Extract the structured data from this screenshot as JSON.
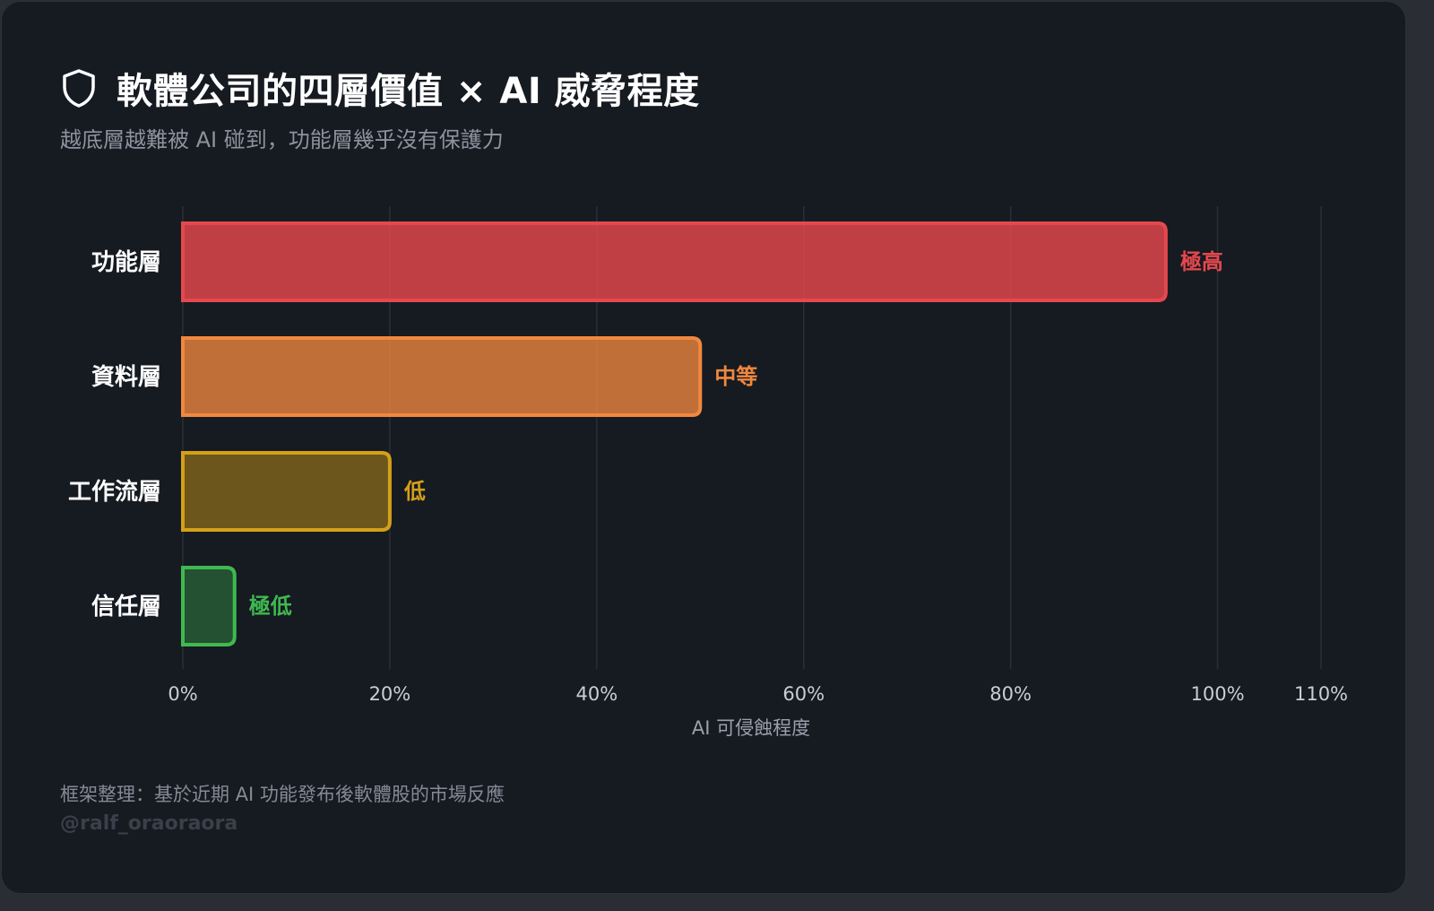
{
  "header": {
    "icon": "shield-icon",
    "title": "軟體公司的四層價值 × AI 威脅程度",
    "subtitle": "越底層越難被 AI 碰到，功能層幾乎沒有保護力"
  },
  "chart_data": {
    "type": "bar",
    "orientation": "horizontal",
    "categories": [
      "功能層",
      "資料層",
      "工作流層",
      "信任層"
    ],
    "values": [
      95,
      50,
      20,
      5
    ],
    "value_unit": "%",
    "data_labels": [
      "極高",
      "中等",
      "低",
      "極低"
    ],
    "colors": [
      "#e5484d",
      "#f0883e",
      "#d4a017",
      "#3fb950"
    ],
    "xlabel": "AI 可侵蝕程度",
    "xlim": [
      0,
      110
    ],
    "xticks": [
      0,
      20,
      40,
      60,
      80,
      100,
      110
    ],
    "xtick_labels": [
      "0%",
      "20%",
      "40%",
      "60%",
      "80%",
      "100%",
      "110%"
    ],
    "grid": "vertical",
    "legend": "none"
  },
  "footer": {
    "note": "框架整理：基於近期 AI 功能發布後軟體股的市場反應",
    "credit": "@ralf_oraoraora"
  }
}
